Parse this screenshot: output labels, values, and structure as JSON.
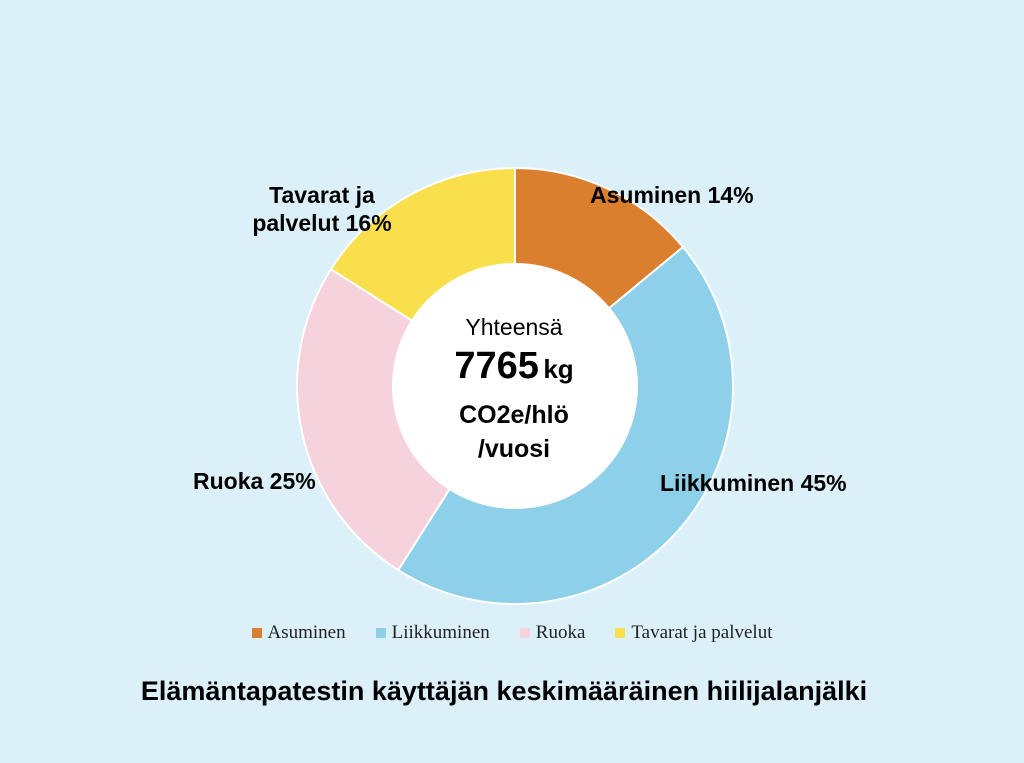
{
  "chart_data": {
    "type": "pie",
    "subtype": "donut",
    "title": "Elämäntapatestin käyttäjän keskimääräinen hiilijalanjälki",
    "categories": [
      "Asuminen",
      "Liikkuminen",
      "Ruoka",
      "Tavarat ja palvelut"
    ],
    "values": [
      14,
      45,
      25,
      16
    ],
    "slice_labels": [
      "Asuminen 14%",
      "Liikkuminen 45%",
      "Ruoka 25%",
      "Tavarat ja palvelut 16%"
    ],
    "colors": [
      "#d97f2e",
      "#8ecfe9",
      "#f6d2dd",
      "#f9df4c"
    ],
    "legend_position": "bottom",
    "center": {
      "label": "Yhteensä",
      "value": "7765",
      "unit": "kg",
      "unit_line2": "CO2e/hlö",
      "unit_line3": "/vuosi"
    }
  },
  "legend": {
    "items": [
      {
        "label": "Asuminen",
        "color": "#d97f2e"
      },
      {
        "label": "Liikkuminen",
        "color": "#8ecfe9"
      },
      {
        "label": "Ruoka",
        "color": "#f6d2dd"
      },
      {
        "label": "Tavarat ja palvelut",
        "color": "#f9df4c"
      }
    ]
  }
}
